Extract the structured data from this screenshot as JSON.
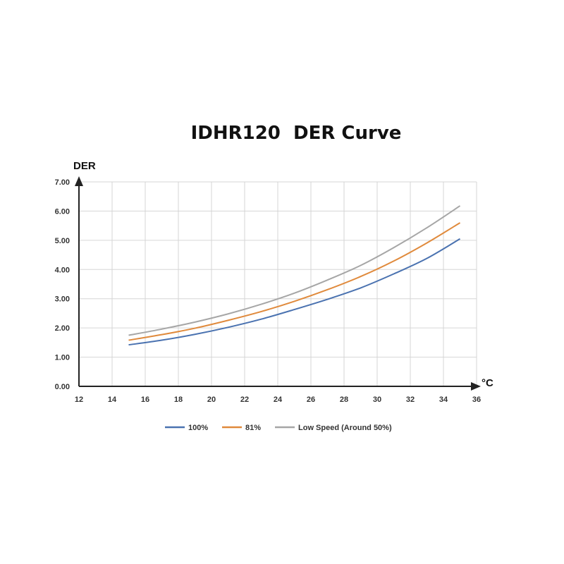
{
  "chart_data": {
    "type": "line",
    "title": "IDHR120  DER Curve",
    "ylabel": "DER",
    "xlabel": "°C",
    "xlim": [
      12,
      36
    ],
    "ylim": [
      0,
      7
    ],
    "x_ticks": [
      "12",
      "14",
      "16",
      "18",
      "20",
      "22",
      "24",
      "26",
      "28",
      "30",
      "32",
      "34",
      "36"
    ],
    "y_ticks": [
      "0.00",
      "1.00",
      "2.00",
      "3.00",
      "4.00",
      "5.00",
      "6.00",
      "7.00"
    ],
    "grid": true,
    "legend_position": "bottom",
    "x": [
      15,
      17,
      19,
      21,
      23,
      25,
      27,
      29,
      31,
      33,
      35
    ],
    "series": [
      {
        "name": "100%",
        "color": "#4a72b0",
        "values": [
          1.42,
          1.58,
          1.78,
          2.02,
          2.3,
          2.63,
          2.98,
          3.37,
          3.85,
          4.38,
          5.05
        ]
      },
      {
        "name": "81%",
        "color": "#e08a3c",
        "values": [
          1.58,
          1.77,
          1.99,
          2.26,
          2.56,
          2.91,
          3.31,
          3.76,
          4.29,
          4.91,
          5.6
        ]
      },
      {
        "name": "Low Speed (Around 50%)",
        "color": "#a6a6a6",
        "values": [
          1.75,
          1.96,
          2.2,
          2.48,
          2.81,
          3.19,
          3.64,
          4.14,
          4.75,
          5.43,
          6.18
        ]
      }
    ]
  }
}
